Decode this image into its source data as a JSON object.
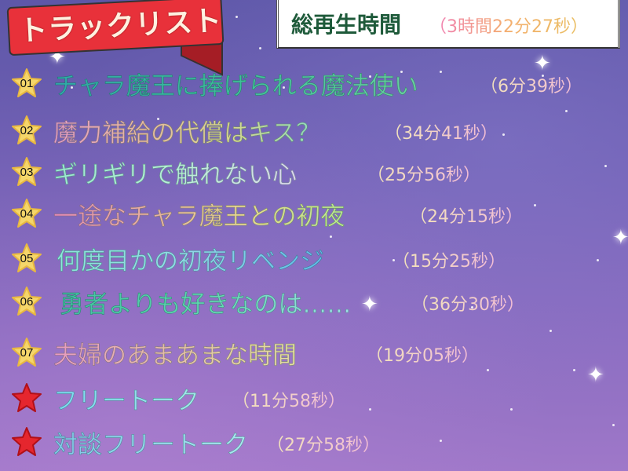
{
  "header": {
    "ribbon_label": "トラックリスト",
    "total_label": "総再生時間",
    "total_duration": "（3時間22分27秒）"
  },
  "colors": {
    "ribbon": "#e8313a",
    "star_numbered": "#f5d66a",
    "star_bonus": "#e5262e",
    "background": "#6f5fb3"
  },
  "tracks": [
    {
      "number": "01",
      "title": "チャラ魔王に捧げられる魔法使い",
      "duration": "（6分39秒）"
    },
    {
      "number": "02",
      "title": "魔力補給の代償はキス？",
      "duration": "（34分41秒）"
    },
    {
      "number": "03",
      "title": "ギリギリで触れない心",
      "duration": "（25分56秒）"
    },
    {
      "number": "04",
      "title": "一途なチャラ魔王との初夜",
      "duration": "（24分15秒）"
    },
    {
      "number": "05",
      "title": "何度目かの初夜リベンジ",
      "duration": "（15分25秒）"
    },
    {
      "number": "06",
      "title": "勇者よりも好きなのは……",
      "duration": "（36分30秒）"
    },
    {
      "number": "07",
      "title": "夫婦のあまあまな時間",
      "duration": "（19分05秒）"
    },
    {
      "number": "",
      "title": "フリートーク",
      "duration": "（11分58秒）"
    },
    {
      "number": "",
      "title": "対談フリートーク",
      "duration": "（27分58秒）"
    }
  ]
}
